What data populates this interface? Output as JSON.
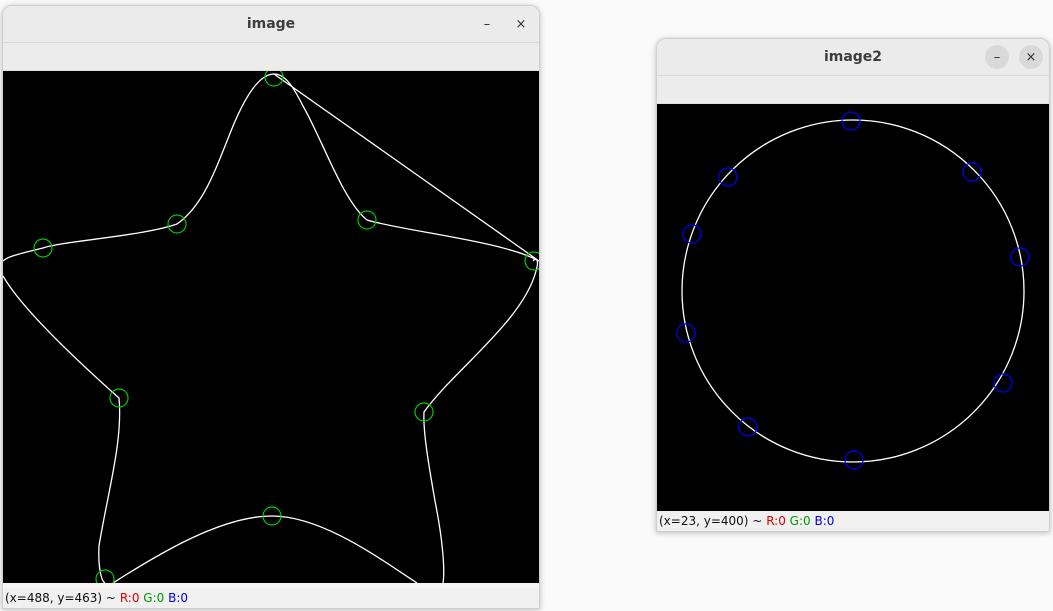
{
  "windows": [
    {
      "title": "image",
      "minimize_label": "–",
      "close_label": "×",
      "status": {
        "coords": "(x=488, y=463) ~",
        "r": "R:0",
        "g": "G:0",
        "b": "B:0"
      }
    },
    {
      "title": "image2",
      "minimize_label": "–",
      "close_label": "×",
      "status": {
        "coords": "(x=23, y=400) ~",
        "r": "R:0",
        "g": "G:0",
        "b": "B:0"
      }
    }
  ],
  "colors": {
    "contour": "#ffffff",
    "star_markers": "#00cc00",
    "circle_markers": "#0000ff",
    "canvas_bg": "#000000"
  },
  "icons": [
    "minimize-icon",
    "close-icon"
  ]
}
